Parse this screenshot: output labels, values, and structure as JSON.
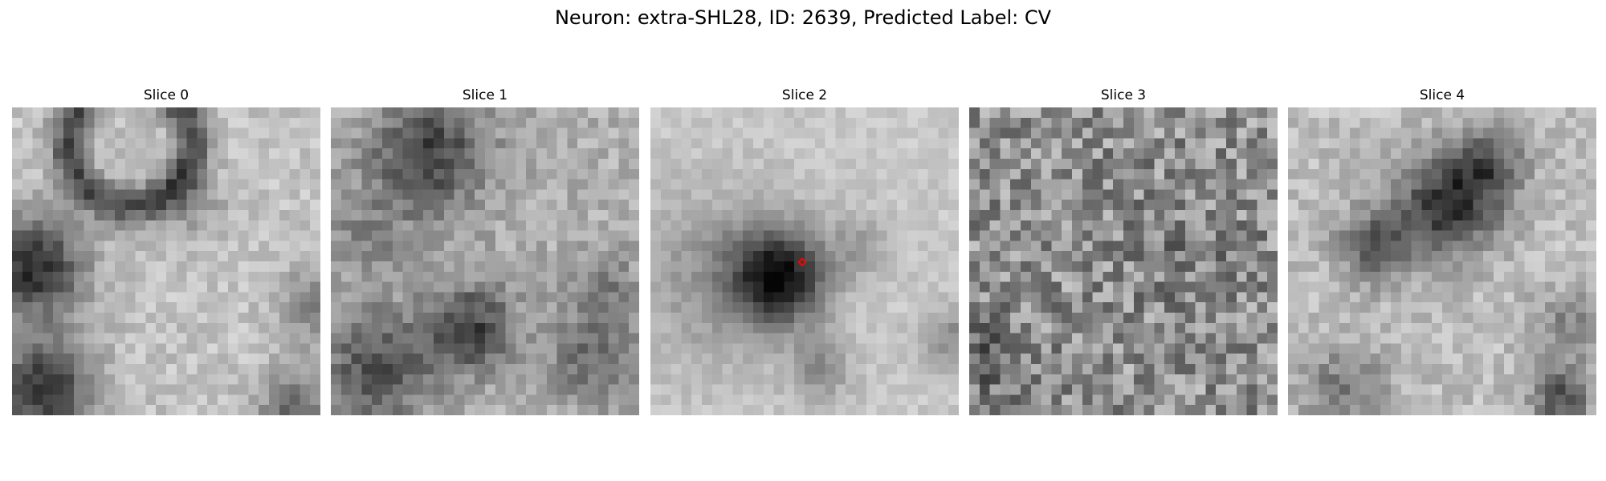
{
  "figure": {
    "title": "Neuron: extra-SHL28, ID: 2639, Predicted Label: CV"
  },
  "panels": [
    {
      "title": "Slice 0"
    },
    {
      "title": "Slice 1"
    },
    {
      "title": "Slice 2"
    },
    {
      "title": "Slice 3"
    },
    {
      "title": "Slice 4"
    }
  ],
  "colors": {
    "marker": "#ff0000",
    "colormap": "gray"
  }
}
